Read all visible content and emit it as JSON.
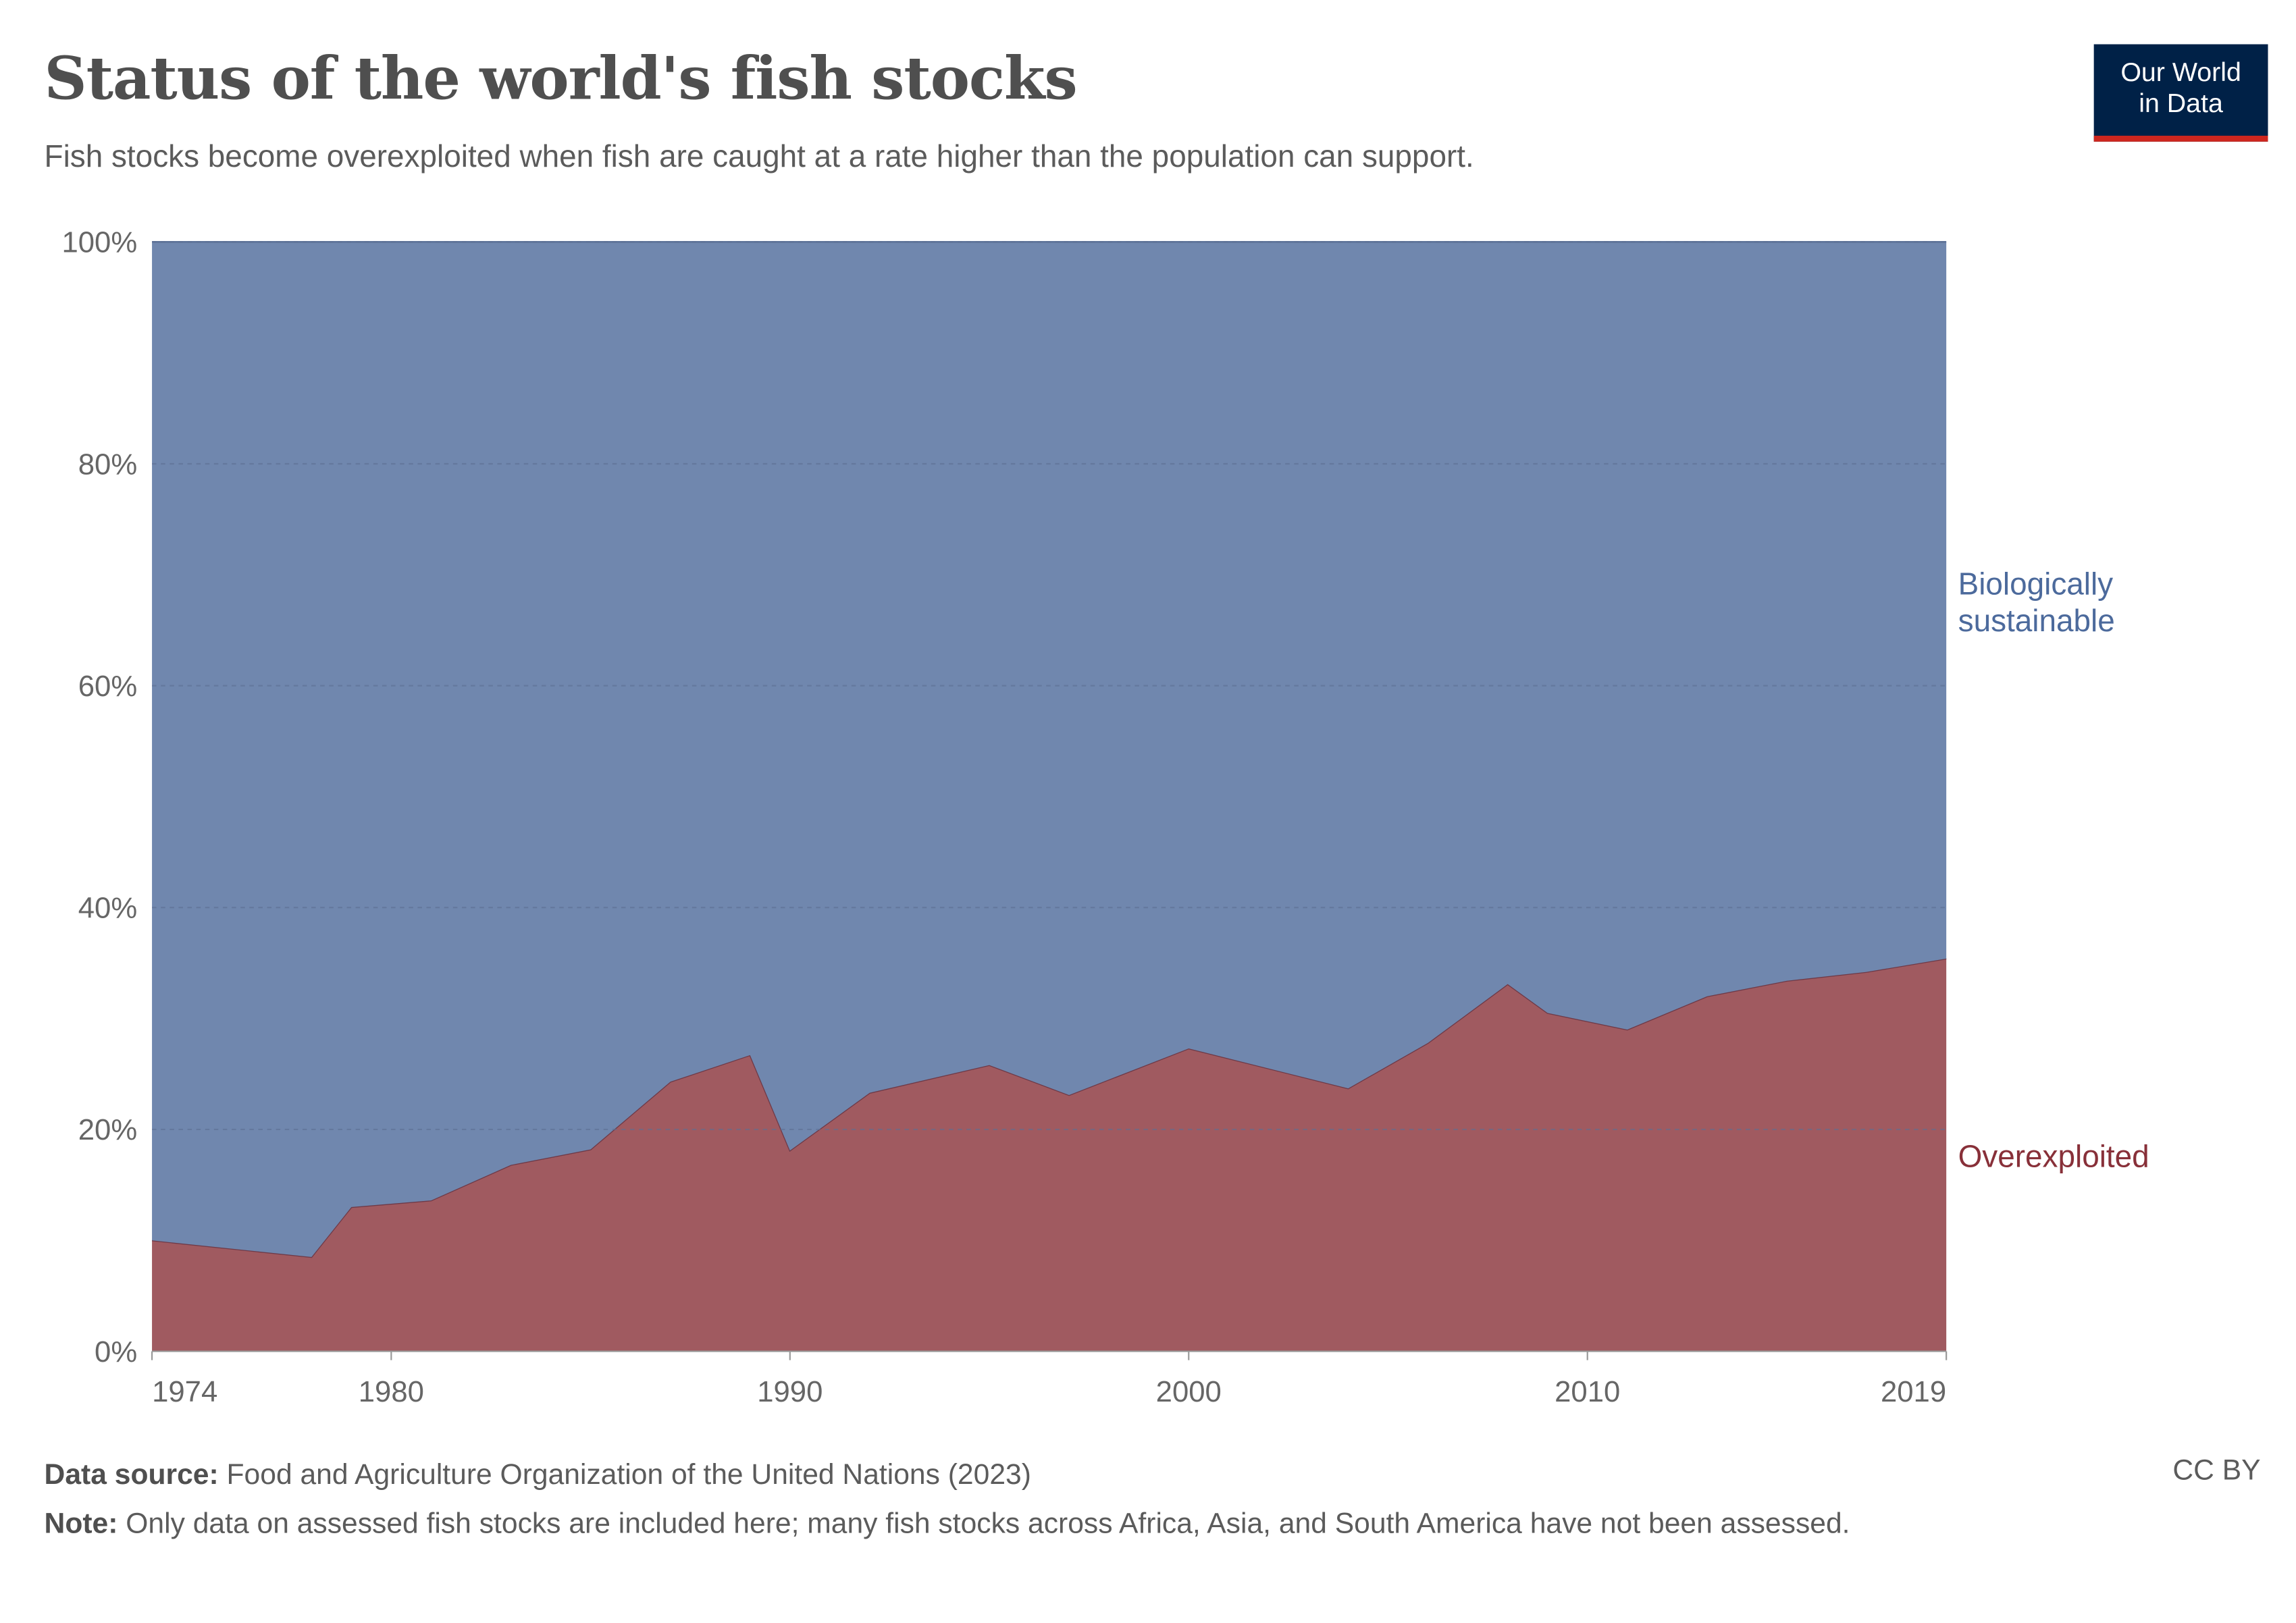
{
  "header": {
    "title": "Status of the world's fish stocks",
    "subtitle": "Fish stocks become overexploited when fish are caught at a rate higher than the population can support.",
    "logo_line1": "Our World",
    "logo_line2": "in Data"
  },
  "chart_data": {
    "type": "area",
    "stacked": true,
    "title": "Status of the world's fish stocks",
    "xlabel": "",
    "ylabel": "",
    "xlim": [
      1974,
      2019
    ],
    "ylim": [
      0,
      100
    ],
    "x_ticks": [
      "1974",
      "1980",
      "1990",
      "2000",
      "2010",
      "2019"
    ],
    "y_ticks": [
      "0%",
      "20%",
      "40%",
      "60%",
      "80%",
      "100%"
    ],
    "grid": "horizontal dashed",
    "legend": "right (inline labels)",
    "x": [
      1974,
      1978,
      1979,
      1981,
      1983,
      1985,
      1987,
      1989,
      1990,
      1992,
      1995,
      1997,
      2000,
      2004,
      2006,
      2008,
      2009,
      2011,
      2013,
      2015,
      2017,
      2019
    ],
    "series": [
      {
        "name": "Overexploited",
        "color": "#a05a60",
        "label_color": "#883039",
        "values": [
          10.0,
          8.5,
          13.0,
          13.6,
          16.8,
          18.2,
          24.3,
          26.7,
          18.1,
          23.3,
          25.8,
          23.1,
          27.3,
          23.7,
          27.8,
          33.1,
          30.5,
          29.0,
          32.0,
          33.4,
          34.2,
          35.4
        ]
      },
      {
        "name": "Biologically sustainable",
        "color": "#7087ae",
        "label_color": "#4c6a9c",
        "values": [
          90.0,
          91.5,
          87.0,
          86.4,
          83.2,
          81.8,
          75.7,
          73.3,
          81.9,
          76.7,
          74.2,
          76.9,
          72.7,
          76.3,
          72.2,
          66.9,
          69.5,
          71.0,
          68.0,
          66.6,
          65.8,
          64.6
        ]
      }
    ]
  },
  "labels": {
    "sustainable_line1": "Biologically",
    "sustainable_line2": "sustainable",
    "overexploited": "Overexploited"
  },
  "footer": {
    "source_label": "Data source:",
    "source_text": "Food and Agriculture Organization of the United Nations (2023)",
    "note_label": "Note:",
    "note_text": "Only data on assessed fish stocks are included here; many fish stocks across Africa, Asia, and South America have not been assessed.",
    "license": "CC BY"
  }
}
